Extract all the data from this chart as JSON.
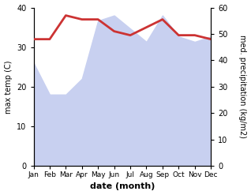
{
  "months": [
    "Jan",
    "Feb",
    "Mar",
    "Apr",
    "May",
    "Jun",
    "Jul",
    "Aug",
    "Sep",
    "Oct",
    "Nov",
    "Dec"
  ],
  "temperature": [
    32,
    32,
    38,
    37,
    37,
    34,
    33,
    35,
    37,
    33,
    33,
    32
  ],
  "precipitation": [
    39,
    27,
    27,
    33,
    55,
    57,
    52,
    47,
    57,
    49,
    47,
    49
  ],
  "temp_color": "#cc3333",
  "precip_fill_color": "#c8d0f0",
  "xlabel": "date (month)",
  "ylabel_left": "max temp (C)",
  "ylabel_right": "med. precipitation (kg/m2)",
  "ylim_left": [
    0,
    40
  ],
  "ylim_right": [
    0,
    60
  ],
  "yticks_left": [
    0,
    10,
    20,
    30,
    40
  ],
  "yticks_right": [
    0,
    10,
    20,
    30,
    40,
    50,
    60
  ],
  "background_color": "#ffffff",
  "temp_linewidth": 2.0,
  "xlabel_fontsize": 8,
  "ylabel_fontsize": 7,
  "tick_fontsize": 7,
  "xtick_fontsize": 6.5
}
